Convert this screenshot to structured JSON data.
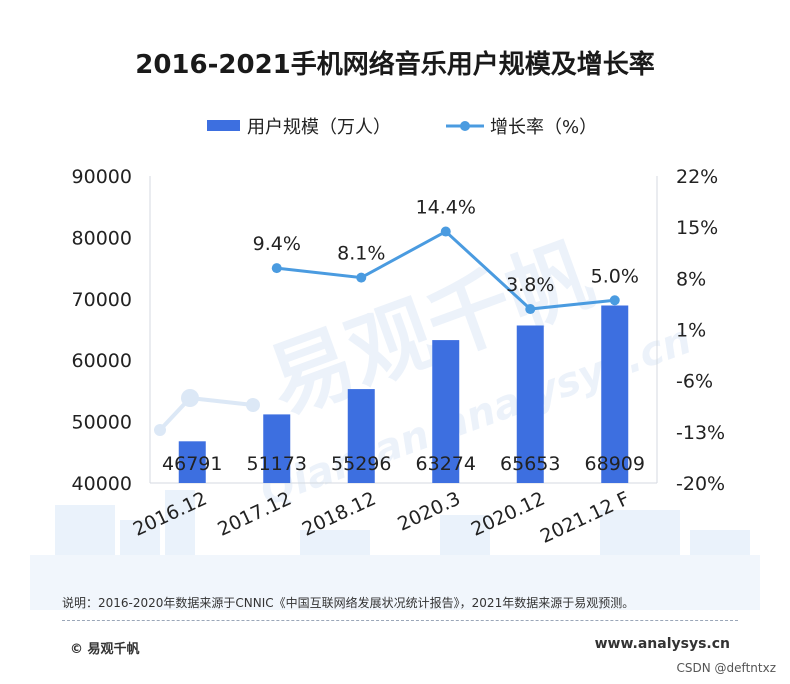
{
  "chart_data": {
    "type": "bar",
    "title": "2016-2021手机网络音乐用户规模及增长率",
    "categories": [
      "2016.12",
      "2017.12",
      "2018.12",
      "2020.3",
      "2020.12",
      "2021.12 F"
    ],
    "series": [
      {
        "name": "用户规模（万人）",
        "kind": "bar",
        "axis": "left",
        "values": [
          46791,
          51173,
          55296,
          63274,
          65653,
          68909
        ],
        "labels": [
          "46791",
          "51173",
          "55296",
          "63274",
          "65653",
          "68909"
        ]
      },
      {
        "name": "增长率（%）",
        "kind": "line",
        "axis": "right",
        "values": [
          null,
          9.4,
          8.1,
          14.4,
          3.8,
          5.0
        ],
        "labels": [
          "",
          "9.4%",
          "8.1%",
          "14.4%",
          "3.8%",
          "5.0%"
        ]
      }
    ],
    "y_left": {
      "min": 40000,
      "max": 90000,
      "ticks": [
        "90000",
        "80000",
        "70000",
        "60000",
        "50000",
        "40000"
      ]
    },
    "y_right": {
      "min": -20,
      "max": 22,
      "ticks": [
        "22%",
        "15%",
        "8%",
        "1%",
        "-6%",
        "-13%",
        "-20%"
      ]
    },
    "legend_position": "top-center",
    "grid": false,
    "colors": {
      "bar": "#3d6fe0",
      "line": "#4a9be0"
    }
  },
  "watermark": {
    "cn": "易观千帆",
    "en": "Qianfan.analysys.cn"
  },
  "footer": {
    "note": "说明：2016-2020年数据来源于CNNIC《中国互联网络发展状况统计报告》，2021年数据来源于易观预测。",
    "brand": "© 易观千帆",
    "url": "www.analysys.cn",
    "csdn": "CSDN @deftntxz"
  }
}
